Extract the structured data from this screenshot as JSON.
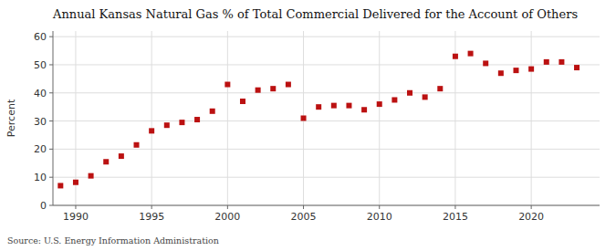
{
  "chart_data": {
    "type": "scatter",
    "title": "Annual Kansas Natural Gas % of Total Commercial Delivered for the Account of Others",
    "ylabel": "Percent",
    "annotations": [
      "Source: U.S. Energy Information Administration"
    ],
    "x": [
      1989,
      1990,
      1991,
      1992,
      1993,
      1994,
      1995,
      1996,
      1997,
      1998,
      1999,
      2000,
      2001,
      2002,
      2003,
      2004,
      2005,
      2006,
      2007,
      2008,
      2009,
      2010,
      2011,
      2012,
      2013,
      2014,
      2015,
      2016,
      2017,
      2018,
      2019,
      2020,
      2021,
      2022,
      2023
    ],
    "values": [
      7.0,
      8.2,
      10.5,
      15.5,
      17.5,
      21.5,
      26.5,
      28.5,
      29.5,
      30.5,
      33.5,
      43.0,
      37.0,
      41.0,
      41.5,
      43.0,
      31.0,
      35.0,
      35.5,
      35.5,
      34.0,
      36.0,
      37.5,
      40.0,
      38.5,
      41.5,
      53.0,
      54.0,
      50.5,
      47.0,
      48.0,
      48.5,
      51.0,
      51.0,
      49.0
    ],
    "color": "#bb1111",
    "marker": "square",
    "xlim": [
      1988.5,
      2024.5
    ],
    "ylim": [
      0,
      62
    ],
    "xticks": [
      1990,
      1995,
      2000,
      2005,
      2010,
      2015,
      2020
    ],
    "yticks": [
      0,
      10,
      20,
      30,
      40,
      50,
      60
    ],
    "grid": true
  }
}
